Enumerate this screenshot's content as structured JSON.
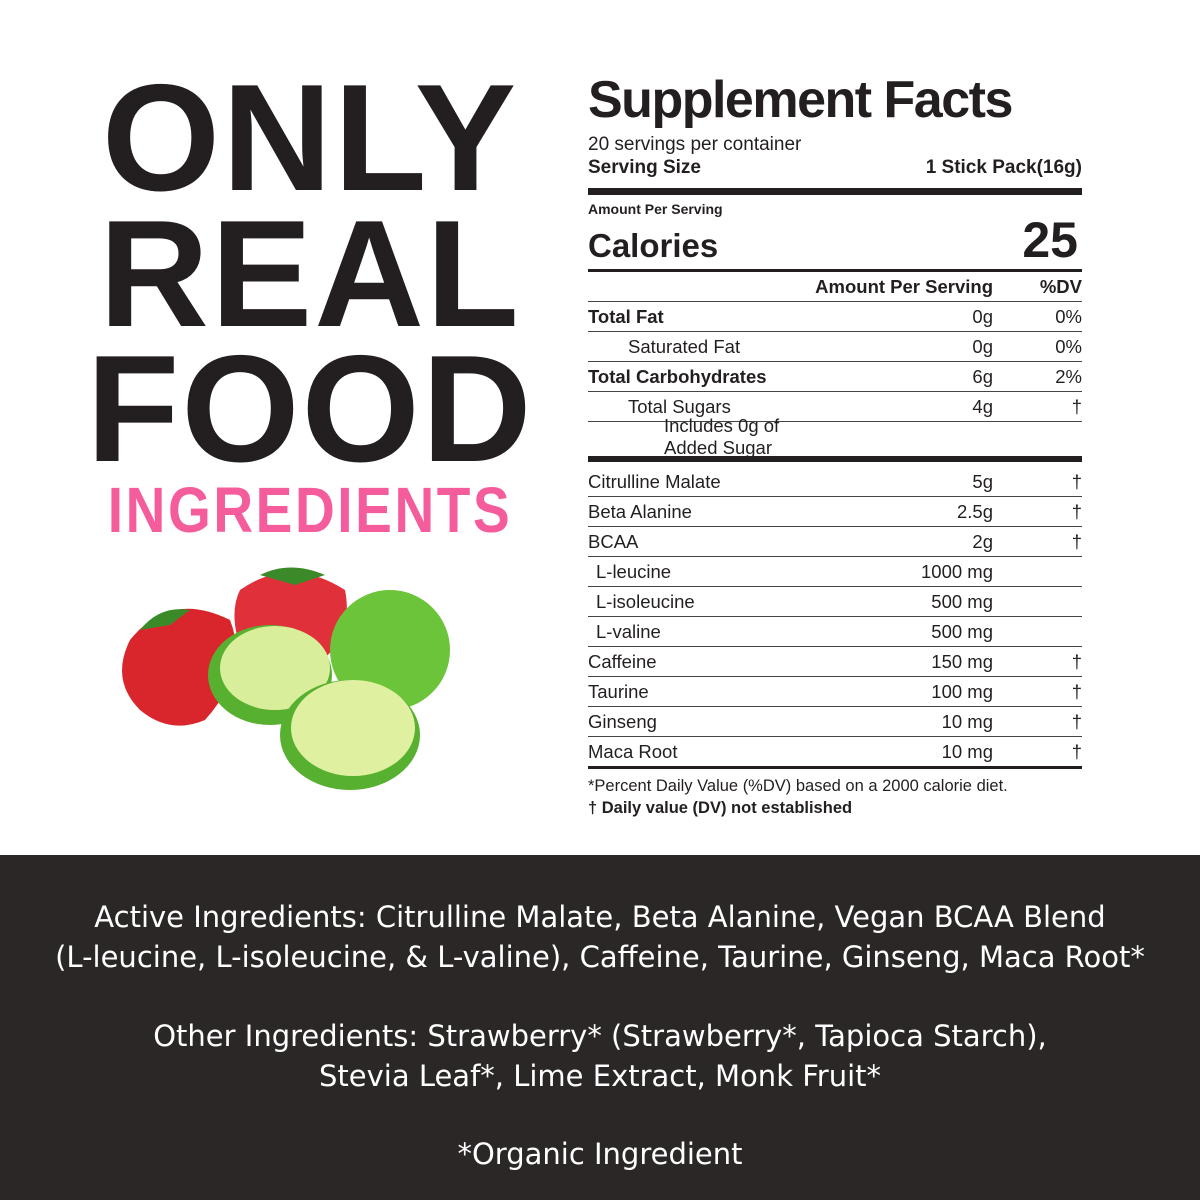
{
  "headline": {
    "line1": "ONLY",
    "line2": "REAL",
    "line3": "FOOD",
    "line4": "INGREDIENTS"
  },
  "colors": {
    "text": "#231f20",
    "accent": "#f45c9c",
    "band": "#2b2727"
  },
  "image": "strawberries-and-limes",
  "facts": {
    "title": "Supplement Facts",
    "servings": "20 servings per container",
    "serving_size_label": "Serving Size",
    "serving_size_value": "1 Stick Pack(16g)",
    "amount_per_serving": "Amount Per Serving",
    "calories_label": "Calories",
    "calories_value": "25",
    "col_amount": "Amount Per Serving",
    "col_dv": "%DV",
    "nutrients": [
      {
        "name": "Total Fat",
        "amount": "0g",
        "dv": "0%"
      },
      {
        "name": "Saturated Fat",
        "amount": "0g",
        "dv": "0%"
      },
      {
        "name": "Total Carbohydrates",
        "amount": "6g",
        "dv": "2%"
      },
      {
        "name": "Total Sugars",
        "amount": "4g",
        "dv": "†"
      },
      {
        "name": "Includes 0g of Added Sugar",
        "amount": "",
        "dv": ""
      }
    ],
    "ingredients": [
      {
        "name": "Citrulline Malate",
        "amount": "5g",
        "dv": "†"
      },
      {
        "name": "Beta Alanine",
        "amount": "2.5g",
        "dv": "†"
      },
      {
        "name": "BCAA",
        "amount": "2g",
        "dv": "†"
      },
      {
        "name": "L-leucine",
        "amount": "1000 mg",
        "dv": ""
      },
      {
        "name": "L-isoleucine",
        "amount": "500 mg",
        "dv": ""
      },
      {
        "name": "L-valine",
        "amount": "500 mg",
        "dv": ""
      },
      {
        "name": "Caffeine",
        "amount": "150 mg",
        "dv": "†"
      },
      {
        "name": "Taurine",
        "amount": "100 mg",
        "dv": "†"
      },
      {
        "name": "Ginseng",
        "amount": "10 mg",
        "dv": "†"
      },
      {
        "name": "Maca Root",
        "amount": "10 mg",
        "dv": "†"
      }
    ],
    "footnote1": "*Percent Daily Value (%DV) based on a 2000 calorie diet.",
    "footnote2": "† Daily value (DV) not established"
  },
  "band": {
    "active1": "Active Ingredients: Citrulline Malate, Beta Alanine, Vegan BCAA Blend",
    "active2": "(L-leucine, L-isoleucine, & L-valine), Caffeine, Taurine, Ginseng, Maca Root*",
    "other1": "Other Ingredients: Strawberry* (Strawberry*, Tapioca Starch),",
    "other2": "Stevia Leaf*, Lime Extract, Monk Fruit*",
    "organic": "*Organic Ingredient"
  }
}
